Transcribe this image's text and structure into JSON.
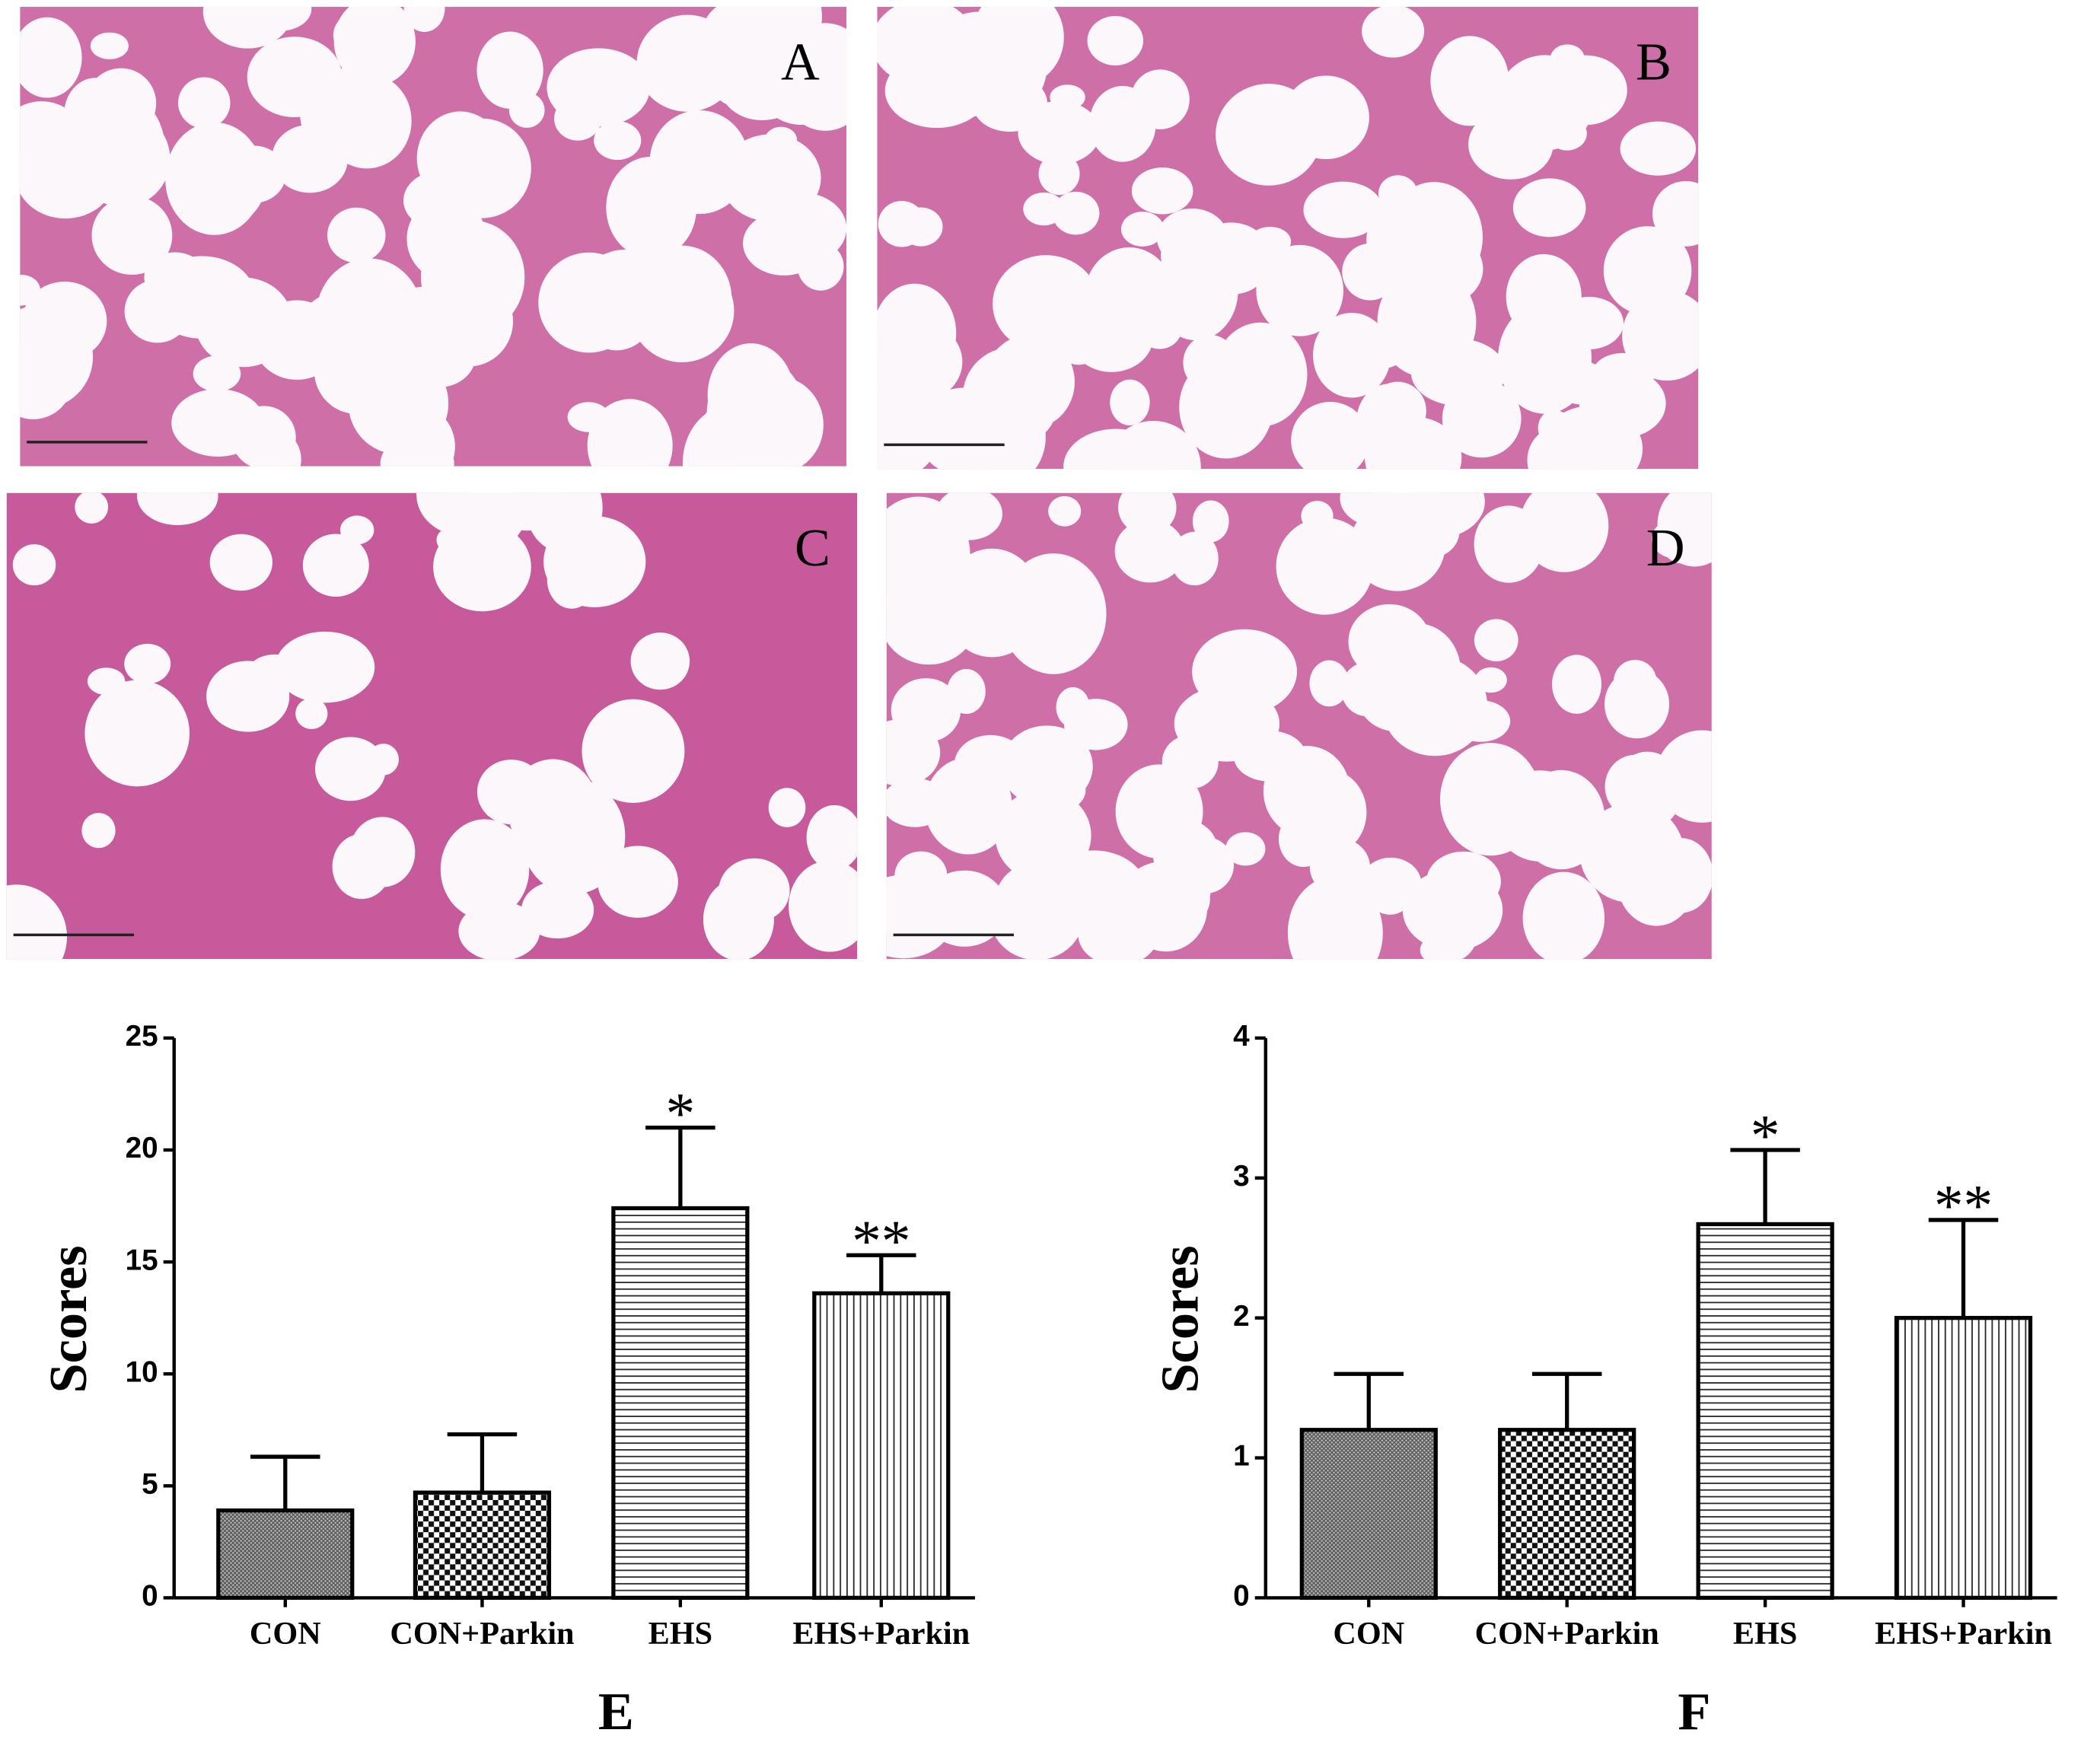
{
  "panels": [
    "A",
    "B",
    "C",
    "D"
  ],
  "chart_data": [
    {
      "type": "bar",
      "x_label": "E",
      "y_label": "Scores",
      "categories": [
        "CON",
        "CON+Parkin",
        "EHS",
        "EHS+Parkin"
      ],
      "values": [
        3.9,
        4.7,
        17.4,
        13.6
      ],
      "errors": [
        2.4,
        2.6,
        3.6,
        1.7
      ],
      "annotations": [
        null,
        null,
        "*",
        "**"
      ],
      "patterns": [
        "crosshatch",
        "checker",
        "horizontal",
        "vertical"
      ],
      "color": "#000000",
      "ylim": [
        0,
        25
      ],
      "yticks": [
        0,
        5,
        10,
        15,
        20,
        25
      ]
    },
    {
      "type": "bar",
      "x_label": "F",
      "y_label": "Scores",
      "categories": [
        "CON",
        "CON+Parkin",
        "EHS",
        "EHS+Parkin"
      ],
      "values": [
        1.2,
        1.2,
        2.67,
        2.0
      ],
      "errors": [
        0.4,
        0.4,
        0.53,
        0.7
      ],
      "annotations": [
        null,
        null,
        "*",
        "**"
      ],
      "patterns": [
        "crosshatch",
        "checker",
        "horizontal",
        "vertical"
      ],
      "color": "#000000",
      "ylim": [
        0,
        4
      ],
      "yticks": [
        0,
        1,
        2,
        3,
        4
      ]
    }
  ]
}
